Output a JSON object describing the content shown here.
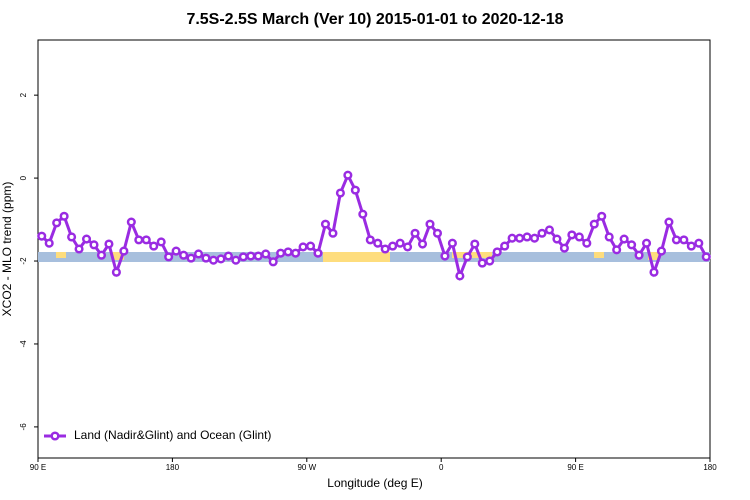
{
  "chart_data": {
    "type": "line",
    "title": "7.5S-2.5S March (Ver 10)   2015-01-01 to 2020-12-18",
    "x_label": "Longitude (deg E)",
    "y_label": "XCO2 - MLO trend (ppm)",
    "xlim": [
      90,
      540
    ],
    "ylim": [
      -6.75,
      3.33
    ],
    "xticks": [
      {
        "value": 90,
        "label": "90 E"
      },
      180,
      {
        "value": 270,
        "label": "90 W"
      },
      {
        "value": 360,
        "label": "0"
      },
      {
        "value": 450,
        "label": "90 E"
      },
      {
        "value": 540,
        "label": "180"
      }
    ],
    "yticks": [
      -6,
      -4,
      -2,
      0,
      2
    ],
    "legend": "bottom-left",
    "x": [
      92.5,
      97.5,
      102.5,
      107.5,
      112.5,
      117.5,
      122.5,
      127.5,
      132.5,
      137.5,
      142.5,
      147.5,
      152.5,
      157.5,
      162.5,
      167.5,
      172.5,
      177.5,
      182.5,
      187.5,
      192.5,
      197.5,
      202.5,
      207.5,
      212.5,
      217.5,
      222.5,
      227.5,
      232.5,
      237.5,
      242.5,
      247.5,
      252.5,
      257.5,
      262.5,
      267.5,
      272.5,
      277.5,
      282.5,
      287.5,
      292.5,
      297.5,
      302.5,
      307.5,
      312.5,
      317.5,
      322.5,
      327.5,
      332.5,
      337.5,
      342.5,
      347.5,
      352.5,
      357.5,
      362.5,
      367.5,
      372.5,
      377.5,
      382.5,
      387.5,
      392.5,
      397.5,
      402.5,
      407.5,
      412.5,
      417.5,
      422.5,
      427.5,
      432.5,
      437.5,
      442.5,
      447.5,
      452.5,
      457.5,
      462.5,
      467.5,
      472.5,
      477.5,
      482.5,
      487.5,
      492.5,
      497.5,
      502.5,
      507.5,
      512.5,
      517.5,
      522.5,
      527.5,
      532.5,
      537.5
    ],
    "series": [
      {
        "name": "Land (Nadir&Glint) and Ocean (Glint)",
        "color": "#9a2be2",
        "values": [
          -1.4,
          -1.57,
          -1.08,
          -0.92,
          -1.42,
          -1.71,
          -1.47,
          -1.61,
          -1.86,
          -1.59,
          -2.27,
          -1.76,
          -1.06,
          -1.49,
          -1.49,
          -1.64,
          -1.54,
          -1.9,
          -1.76,
          -1.86,
          -1.93,
          -1.83,
          -1.93,
          -1.98,
          -1.95,
          -1.88,
          -1.98,
          -1.9,
          -1.88,
          -1.88,
          -1.83,
          -2.02,
          -1.81,
          -1.78,
          -1.81,
          -1.66,
          -1.64,
          -1.81,
          -1.11,
          -1.33,
          -0.36,
          0.07,
          -0.29,
          -0.87,
          -1.49,
          -1.57,
          -1.71,
          -1.64,
          -1.57,
          -1.66,
          -1.33,
          -1.59,
          -1.11,
          -1.33,
          -1.88,
          -1.57,
          -2.36,
          -1.9,
          -1.59,
          -2.05,
          -2.0,
          -1.78,
          -1.64,
          -1.45,
          -1.45,
          -1.42,
          -1.45,
          -1.33,
          -1.25,
          -1.47,
          -1.69,
          -1.37,
          -1.42,
          -1.57,
          -1.11,
          -0.92,
          -1.42,
          -1.73,
          -1.47,
          -1.61,
          -1.86,
          -1.57,
          -2.27,
          -1.76,
          -1.06,
          -1.49,
          -1.49,
          -1.64,
          -1.57,
          -1.9
        ]
      }
    ]
  }
}
